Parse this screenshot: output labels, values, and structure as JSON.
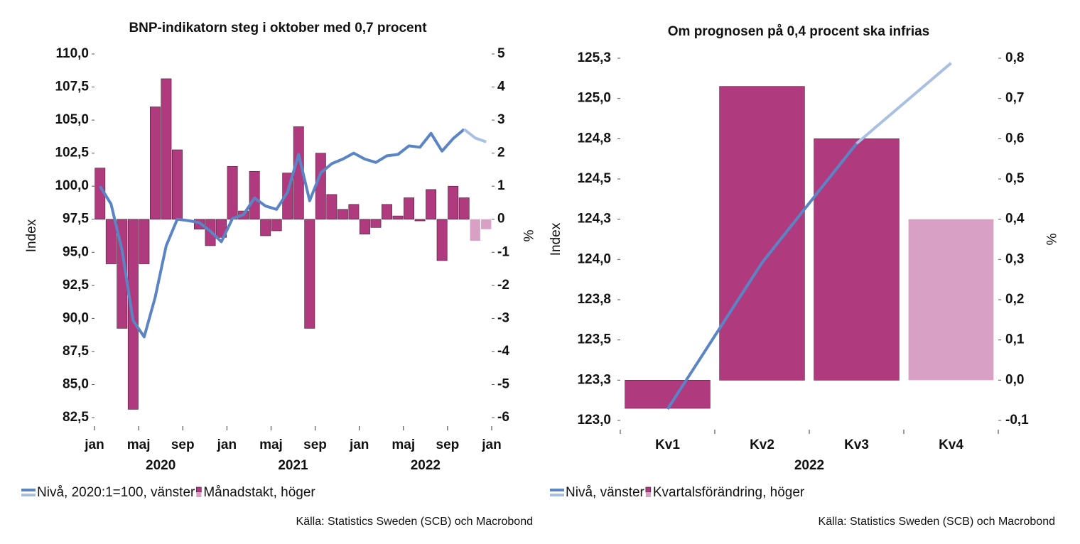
{
  "chart_data": [
    {
      "type": "bar_line",
      "title": "BNP-indikatorn steg i oktober med 0,7 procent",
      "ylabel": "Index",
      "y2label": "%",
      "x": [
        "2020-01",
        "2020-02",
        "2020-03",
        "2020-04",
        "2020-05",
        "2020-06",
        "2020-07",
        "2020-08",
        "2020-09",
        "2020-10",
        "2020-11",
        "2020-12",
        "2021-01",
        "2021-02",
        "2021-03",
        "2021-04",
        "2021-05",
        "2021-06",
        "2021-07",
        "2021-08",
        "2021-09",
        "2021-10",
        "2021-11",
        "2021-12",
        "2022-01",
        "2022-02",
        "2022-03",
        "2022-04",
        "2022-05",
        "2022-06",
        "2022-07",
        "2022-08",
        "2022-09",
        "2022-10",
        "2022-11",
        "2022-12"
      ],
      "xticks": [
        {
          "value": "2020-01",
          "label": "jan"
        },
        {
          "value": "2020-05",
          "label": "maj"
        },
        {
          "value": "2020-09",
          "label": "sep"
        },
        {
          "value": "2021-01",
          "label": "jan"
        },
        {
          "value": "2021-05",
          "label": "maj"
        },
        {
          "value": "2021-09",
          "label": "sep"
        },
        {
          "value": "2022-01",
          "label": "jan"
        },
        {
          "value": "2022-05",
          "label": "maj"
        },
        {
          "value": "2022-09",
          "label": "sep"
        },
        {
          "value": "2023-01",
          "label": "jan"
        }
      ],
      "years": [
        "2020",
        "2021",
        "2022"
      ],
      "ylim": [
        82.5,
        110
      ],
      "yticks": [
        {
          "value": 82.5,
          "label": "82,5"
        },
        {
          "value": 85,
          "label": "85,0"
        },
        {
          "value": 87.5,
          "label": "87,5"
        },
        {
          "value": 90,
          "label": "90,0"
        },
        {
          "value": 92.5,
          "label": "92,5"
        },
        {
          "value": 95,
          "label": "95,0"
        },
        {
          "value": 97.5,
          "label": "97,5"
        },
        {
          "value": 100,
          "label": "100,0"
        },
        {
          "value": 102.5,
          "label": "102,5"
        },
        {
          "value": 105,
          "label": "105,0"
        },
        {
          "value": 107.5,
          "label": "107,5"
        },
        {
          "value": 110,
          "label": "110,0"
        }
      ],
      "y2lim": [
        -6,
        5
      ],
      "y2ticks": [
        -6,
        -5,
        -4,
        -3,
        -2,
        -1,
        0,
        1,
        2,
        3,
        4,
        5
      ],
      "series": [
        {
          "name": "Nivå, 2020:1=100, vänster",
          "type": "line",
          "color": "#5b84c4",
          "values": [
            100.0,
            98.65,
            95.15,
            89.85,
            88.6,
            91.6,
            95.5,
            97.5,
            97.4,
            97.25,
            96.6,
            95.8,
            97.55,
            97.85,
            99.1,
            98.5,
            98.25,
            99.55,
            102.4,
            98.9,
            101.0,
            101.7,
            102.05,
            102.5,
            102.05,
            101.8,
            102.3,
            102.4,
            103.05,
            102.95,
            104.0,
            102.65,
            103.6,
            104.3,
            null,
            null
          ]
        },
        {
          "type": "line",
          "color": "#a9c0e2",
          "values": [
            null,
            null,
            null,
            null,
            null,
            null,
            null,
            null,
            null,
            null,
            null,
            null,
            null,
            null,
            null,
            null,
            null,
            null,
            null,
            null,
            null,
            null,
            null,
            null,
            null,
            null,
            null,
            null,
            null,
            null,
            null,
            null,
            null,
            104.3,
            103.65,
            103.35
          ]
        },
        {
          "name": "Månadstakt, höger",
          "type": "bar",
          "axis": "y2",
          "color": "#b03a7e",
          "values": [
            1.55,
            -1.35,
            -3.3,
            -5.75,
            -1.35,
            3.4,
            4.25,
            2.1,
            0.0,
            -0.3,
            -0.8,
            -0.55,
            1.6,
            0.25,
            1.45,
            -0.5,
            -0.35,
            1.4,
            2.8,
            -3.3,
            2.0,
            0.75,
            0.3,
            0.45,
            -0.45,
            -0.25,
            0.45,
            0.1,
            0.65,
            -0.05,
            0.9,
            -1.25,
            1.0,
            0.65,
            null,
            null
          ]
        },
        {
          "type": "bar",
          "axis": "y2",
          "color": "#d8a0c4",
          "values": [
            null,
            null,
            null,
            null,
            null,
            null,
            null,
            null,
            null,
            null,
            null,
            null,
            null,
            null,
            null,
            null,
            null,
            null,
            null,
            null,
            null,
            null,
            null,
            null,
            null,
            null,
            null,
            null,
            null,
            null,
            null,
            null,
            null,
            null,
            -0.65,
            -0.3
          ]
        }
      ],
      "source": "Källa: Statistics Sweden (SCB) och Macrobond"
    },
    {
      "type": "bar_line",
      "title": "Om prognosen på 0,4 procent ska infrias",
      "ylabel": "Index",
      "y2label": "%",
      "categories": [
        "Kv1",
        "Kv2",
        "Kv3",
        "Kv4"
      ],
      "years": [
        "2022"
      ],
      "ylim": [
        123.0,
        125.25
      ],
      "yticks": [
        {
          "value": 123.0,
          "label": "123,0"
        },
        {
          "value": 123.25,
          "label": "123,3"
        },
        {
          "value": 123.5,
          "label": "123,5"
        },
        {
          "value": 123.75,
          "label": "123,8"
        },
        {
          "value": 124.0,
          "label": "124,0"
        },
        {
          "value": 124.25,
          "label": "124,3"
        },
        {
          "value": 124.5,
          "label": "124,5"
        },
        {
          "value": 124.75,
          "label": "124,8"
        },
        {
          "value": 125.0,
          "label": "125,0"
        },
        {
          "value": 125.25,
          "label": "125,3"
        }
      ],
      "y2lim": [
        -0.1,
        0.8
      ],
      "y2ticks": [
        {
          "value": -0.1,
          "label": "-0,1"
        },
        {
          "value": 0,
          "label": "0,0"
        },
        {
          "value": 0.1,
          "label": "0,1"
        },
        {
          "value": 0.2,
          "label": "0,2"
        },
        {
          "value": 0.3,
          "label": "0,3"
        },
        {
          "value": 0.4,
          "label": "0,4"
        },
        {
          "value": 0.5,
          "label": "0,5"
        },
        {
          "value": 0.6,
          "label": "0,6"
        },
        {
          "value": 0.7,
          "label": "0,7"
        },
        {
          "value": 0.8,
          "label": "0,8"
        }
      ],
      "series": [
        {
          "name": "Kvartalsförändring, höger",
          "type": "bar",
          "axis": "y2",
          "color": "#b03a7e",
          "values": [
            -0.07,
            0.73,
            0.6,
            null
          ]
        },
        {
          "type": "bar",
          "axis": "y2",
          "color": "#d8a0c4",
          "values": [
            null,
            null,
            null,
            0.4
          ]
        },
        {
          "name": "Nivå, vänster",
          "type": "line",
          "color": "#5b84c4",
          "values": [
            123.07,
            123.98,
            124.72,
            null
          ]
        },
        {
          "type": "line",
          "color": "#a9c0e2",
          "values": [
            null,
            null,
            124.72,
            125.22
          ]
        }
      ],
      "source": "Källa: Statistics Sweden (SCB) och Macrobond"
    }
  ]
}
